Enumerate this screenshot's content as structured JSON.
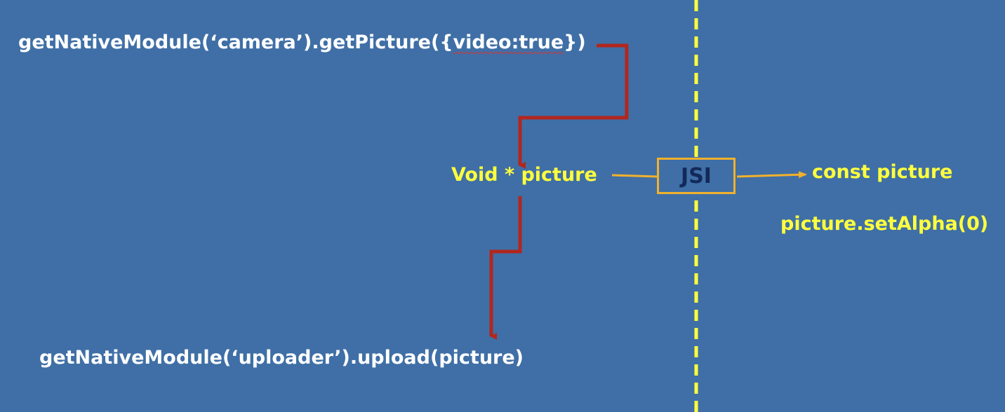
{
  "code": {
    "camera_call_prefix": "getNativeModule(‘camera’).getPicture({",
    "camera_call_highlight": "video:true",
    "camera_call_suffix": "})",
    "void_picture": "Void * picture",
    "const_picture": "const picture",
    "set_alpha": "picture.setAlpha(0)",
    "upload_call": "getNativeModule(‘uploader’).upload(picture)"
  },
  "jsi": {
    "label": "JSI"
  },
  "colors": {
    "background": "#3f6fa6",
    "flow_arrow": "#b3261e",
    "jsi_connector": "#f2b12c",
    "divider": "#ffff3d",
    "native_text": "#ffffff",
    "js_text": "#ffff3d",
    "jsi_text": "#13295a"
  }
}
